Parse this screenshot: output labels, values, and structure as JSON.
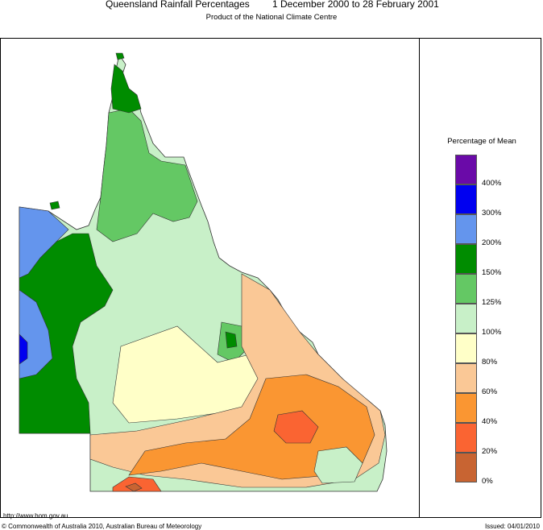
{
  "title": {
    "left": "Queensland Rainfall Percentages",
    "right": "1 December 2000 to 28 February 2001"
  },
  "subtitle": "Product of the National Climate Centre",
  "legend": {
    "title": "Percentage of Mean",
    "bands": [
      {
        "color": "#6a0aa8"
      },
      {
        "color": "#0000f0"
      },
      {
        "color": "#6495ed"
      },
      {
        "color": "#008c00"
      },
      {
        "color": "#64c864"
      },
      {
        "color": "#c8f0c8"
      },
      {
        "color": "#ffffc8"
      },
      {
        "color": "#fac896"
      },
      {
        "color": "#fa9632"
      },
      {
        "color": "#fa6432"
      },
      {
        "color": "#c86432"
      }
    ],
    "labels": [
      "400%",
      "300%",
      "200%",
      "150%",
      "125%",
      "100%",
      "80%",
      "60%",
      "40%",
      "20%",
      "0%"
    ]
  },
  "footer": {
    "url": "http://www.bom.gov.au",
    "copyright": "© Commonwealth of Australia 2010, Australian Bureau of Meteorology",
    "issued": "Issued: 04/01/2010"
  }
}
